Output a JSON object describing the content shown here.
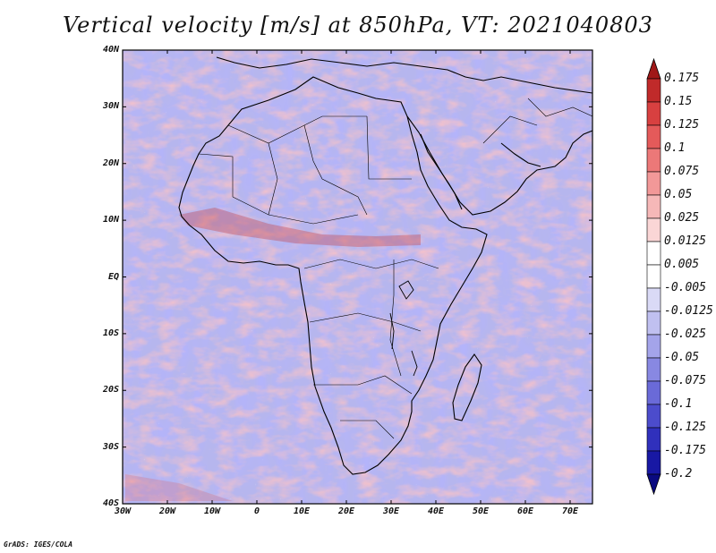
{
  "title": "Vertical velocity [m/s] at 850hPa, VT: 2021040803",
  "credit": "GrADS: IGES/COLA",
  "map": {
    "lon_range": [
      -30,
      75
    ],
    "lat_range": [
      -40,
      45
    ],
    "lat_labels": [
      "40N",
      "30N",
      "20N",
      "10N",
      "EQ",
      "10S",
      "20S",
      "30S",
      "40S"
    ],
    "lon_labels": [
      "30W",
      "20W",
      "10W",
      "0",
      "10E",
      "20E",
      "30E",
      "40E",
      "50E",
      "60E",
      "70E"
    ]
  },
  "colorbar": {
    "labels": [
      "0.175",
      "0.15",
      "0.125",
      "0.1",
      "0.075",
      "0.05",
      "0.025",
      "0.0125",
      "0.005",
      "-0.005",
      "-0.0125",
      "-0.025",
      "-0.05",
      "-0.075",
      "-0.1",
      "-0.125",
      "-0.175",
      "-0.2"
    ],
    "colors": [
      "#a01818",
      "#c02a2a",
      "#d84040",
      "#e45a5a",
      "#ec7878",
      "#f29898",
      "#f6b8b8",
      "#fad6d6",
      "#ffffff",
      "#ffffff",
      "#dadaf6",
      "#c0c0f0",
      "#a4a4ea",
      "#8888e2",
      "#6a6ad8",
      "#4c4ccc",
      "#3030bc",
      "#1818a4",
      "#0a0a80"
    ]
  }
}
